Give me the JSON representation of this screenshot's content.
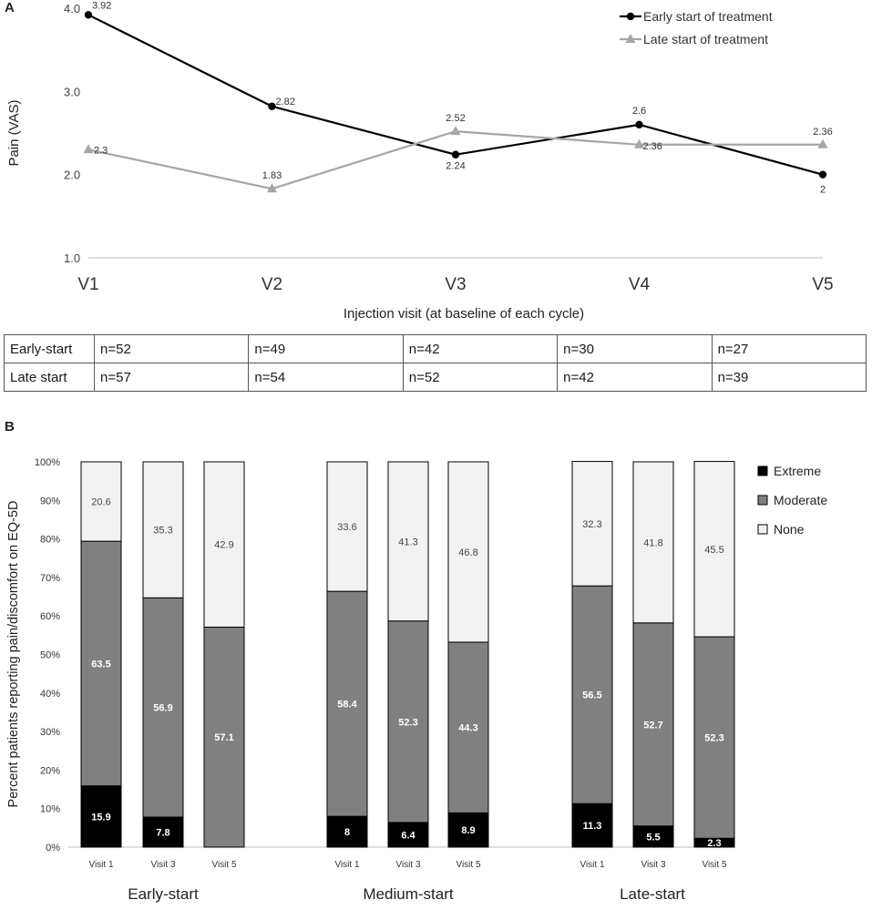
{
  "panel_a_label": "A",
  "panel_b_label": "B",
  "chart_data": [
    {
      "type": "line",
      "title": "",
      "xlabel": "Injection visit (at baseline of each cycle)",
      "ylabel": "Pain (VAS)",
      "categories": [
        "V1",
        "V2",
        "V3",
        "V4",
        "V5"
      ],
      "ylim": [
        1.0,
        4.0
      ],
      "yticks": [
        "1.0",
        "2.0",
        "3.0",
        "4.0"
      ],
      "grid": false,
      "legend": "top-right",
      "series": [
        {
          "name": "Early start of treatment",
          "color": "#000000",
          "marker": "circle",
          "values": [
            3.92,
            2.82,
            2.24,
            2.6,
            2.0
          ],
          "labels": [
            "3.92",
            "2.82",
            "2.24",
            "2.6",
            "2"
          ]
        },
        {
          "name": "Late start of treatment",
          "color": "#a6a6a6",
          "marker": "triangle",
          "values": [
            2.3,
            1.83,
            2.52,
            2.36,
            2.36
          ],
          "labels": [
            "2.3",
            "1.83",
            "2.52",
            "2.36",
            "2.36"
          ]
        }
      ]
    },
    {
      "type": "table",
      "rows": [
        {
          "label": "Early-start",
          "cells": [
            "n=52",
            "n=49",
            "n=42",
            "n=30",
            "n=27"
          ]
        },
        {
          "label": "Late start",
          "cells": [
            "n=57",
            "n=54",
            "n=52",
            "n=42",
            "n=39"
          ]
        }
      ]
    },
    {
      "type": "bar",
      "stacked": true,
      "title": "",
      "ylabel": "Percent patients reporting pain/discomfort on EQ-5D",
      "ylim": [
        0,
        100
      ],
      "yticks": [
        "0%",
        "10%",
        "20%",
        "30%",
        "40%",
        "50%",
        "60%",
        "70%",
        "80%",
        "90%",
        "100%"
      ],
      "legend": "top-right",
      "groups": [
        {
          "name": "Early-start",
          "categories": [
            "Visit 1",
            "Visit 3",
            "Visit 5"
          ]
        },
        {
          "name": "Medium-start",
          "categories": [
            "Visit 1",
            "Visit 3",
            "Visit 5"
          ]
        },
        {
          "name": "Late-start",
          "categories": [
            "Visit 1",
            "Visit 3",
            "Visit 5"
          ]
        }
      ],
      "series": [
        {
          "name": "Extreme",
          "color": "#000000",
          "values": [
            15.9,
            7.8,
            0,
            8,
            6.4,
            8.9,
            11.3,
            5.5,
            2.3
          ],
          "labels": [
            "15.9",
            "7.8",
            "",
            "8",
            "6.4",
            "8.9",
            "11.3",
            "5.5",
            "2.3"
          ]
        },
        {
          "name": "Moderate",
          "color": "#808080",
          "values": [
            63.5,
            56.9,
            57.1,
            58.4,
            52.3,
            44.3,
            56.5,
            52.7,
            52.3
          ],
          "labels": [
            "63.5",
            "56.9",
            "57.1",
            "58.4",
            "52.3",
            "44.3",
            "56.5",
            "52.7",
            "52.3"
          ]
        },
        {
          "name": "None",
          "color": "#f2f2f2",
          "values": [
            20.6,
            35.3,
            42.9,
            33.6,
            41.3,
            46.8,
            32.3,
            41.8,
            45.5
          ],
          "labels": [
            "20.6",
            "35.3",
            "42.9",
            "33.6",
            "41.3",
            "46.8",
            "32.3",
            "41.8",
            "45.5"
          ]
        }
      ]
    }
  ]
}
